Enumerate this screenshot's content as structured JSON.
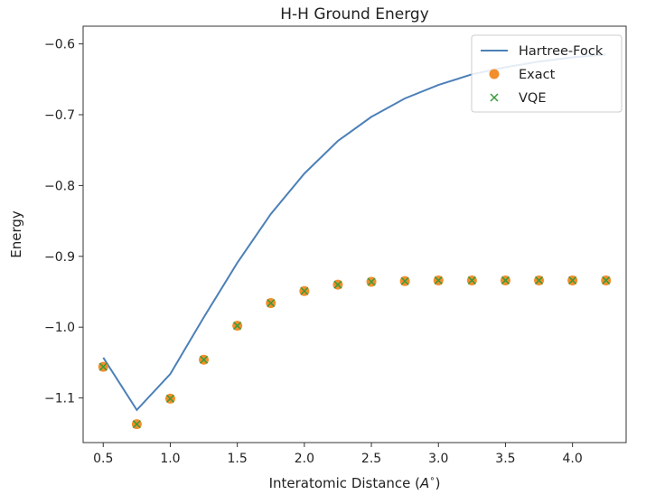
{
  "chart_data": {
    "type": "line",
    "title": "H-H Ground Energy",
    "xlabel": "Interatomic Distance ($A^\\circ$)",
    "ylabel": "Energy",
    "xlim": [
      0.35,
      4.4
    ],
    "ylim": [
      -1.163,
      -0.575
    ],
    "xticks": [
      0.5,
      1.0,
      1.5,
      2.0,
      2.5,
      3.0,
      3.5,
      4.0
    ],
    "xtick_labels": [
      "0.5",
      "1.0",
      "1.5",
      "2.0",
      "2.5",
      "3.0",
      "3.5",
      "4.0"
    ],
    "yticks": [
      -1.1,
      -1.0,
      -0.9,
      -0.8,
      -0.7,
      -0.6
    ],
    "ytick_labels": [
      "−1.1",
      "−1.0",
      "−0.9",
      "−0.8",
      "−0.7",
      "−0.6"
    ],
    "grid": false,
    "legend_position": "top-right",
    "x": [
      0.5,
      0.75,
      1.0,
      1.25,
      1.5,
      1.75,
      2.0,
      2.25,
      2.5,
      2.75,
      3.0,
      3.25,
      3.5,
      3.75,
      4.0,
      4.25
    ],
    "series": [
      {
        "name": "Hartree-Fock",
        "style": "line",
        "color": "#4c80b8",
        "values": [
          -1.043,
          -1.117,
          -1.066,
          -0.986,
          -0.909,
          -0.84,
          -0.783,
          -0.737,
          -0.703,
          -0.677,
          -0.658,
          -0.643,
          -0.633,
          -0.625,
          -0.619,
          -0.615
        ]
      },
      {
        "name": "Exact",
        "style": "circle",
        "color": "#f28e2b",
        "values": [
          -1.056,
          -1.137,
          -1.101,
          -1.046,
          -0.998,
          -0.966,
          -0.949,
          -0.94,
          -0.936,
          -0.935,
          -0.934,
          -0.934,
          -0.934,
          -0.934,
          -0.934,
          -0.934
        ]
      },
      {
        "name": "VQE",
        "style": "x",
        "color": "#3a9a3a",
        "values": [
          -1.056,
          -1.137,
          -1.101,
          -1.046,
          -0.998,
          -0.966,
          -0.949,
          -0.94,
          -0.936,
          -0.935,
          -0.934,
          -0.934,
          -0.934,
          -0.934,
          -0.934,
          -0.934
        ]
      }
    ]
  }
}
